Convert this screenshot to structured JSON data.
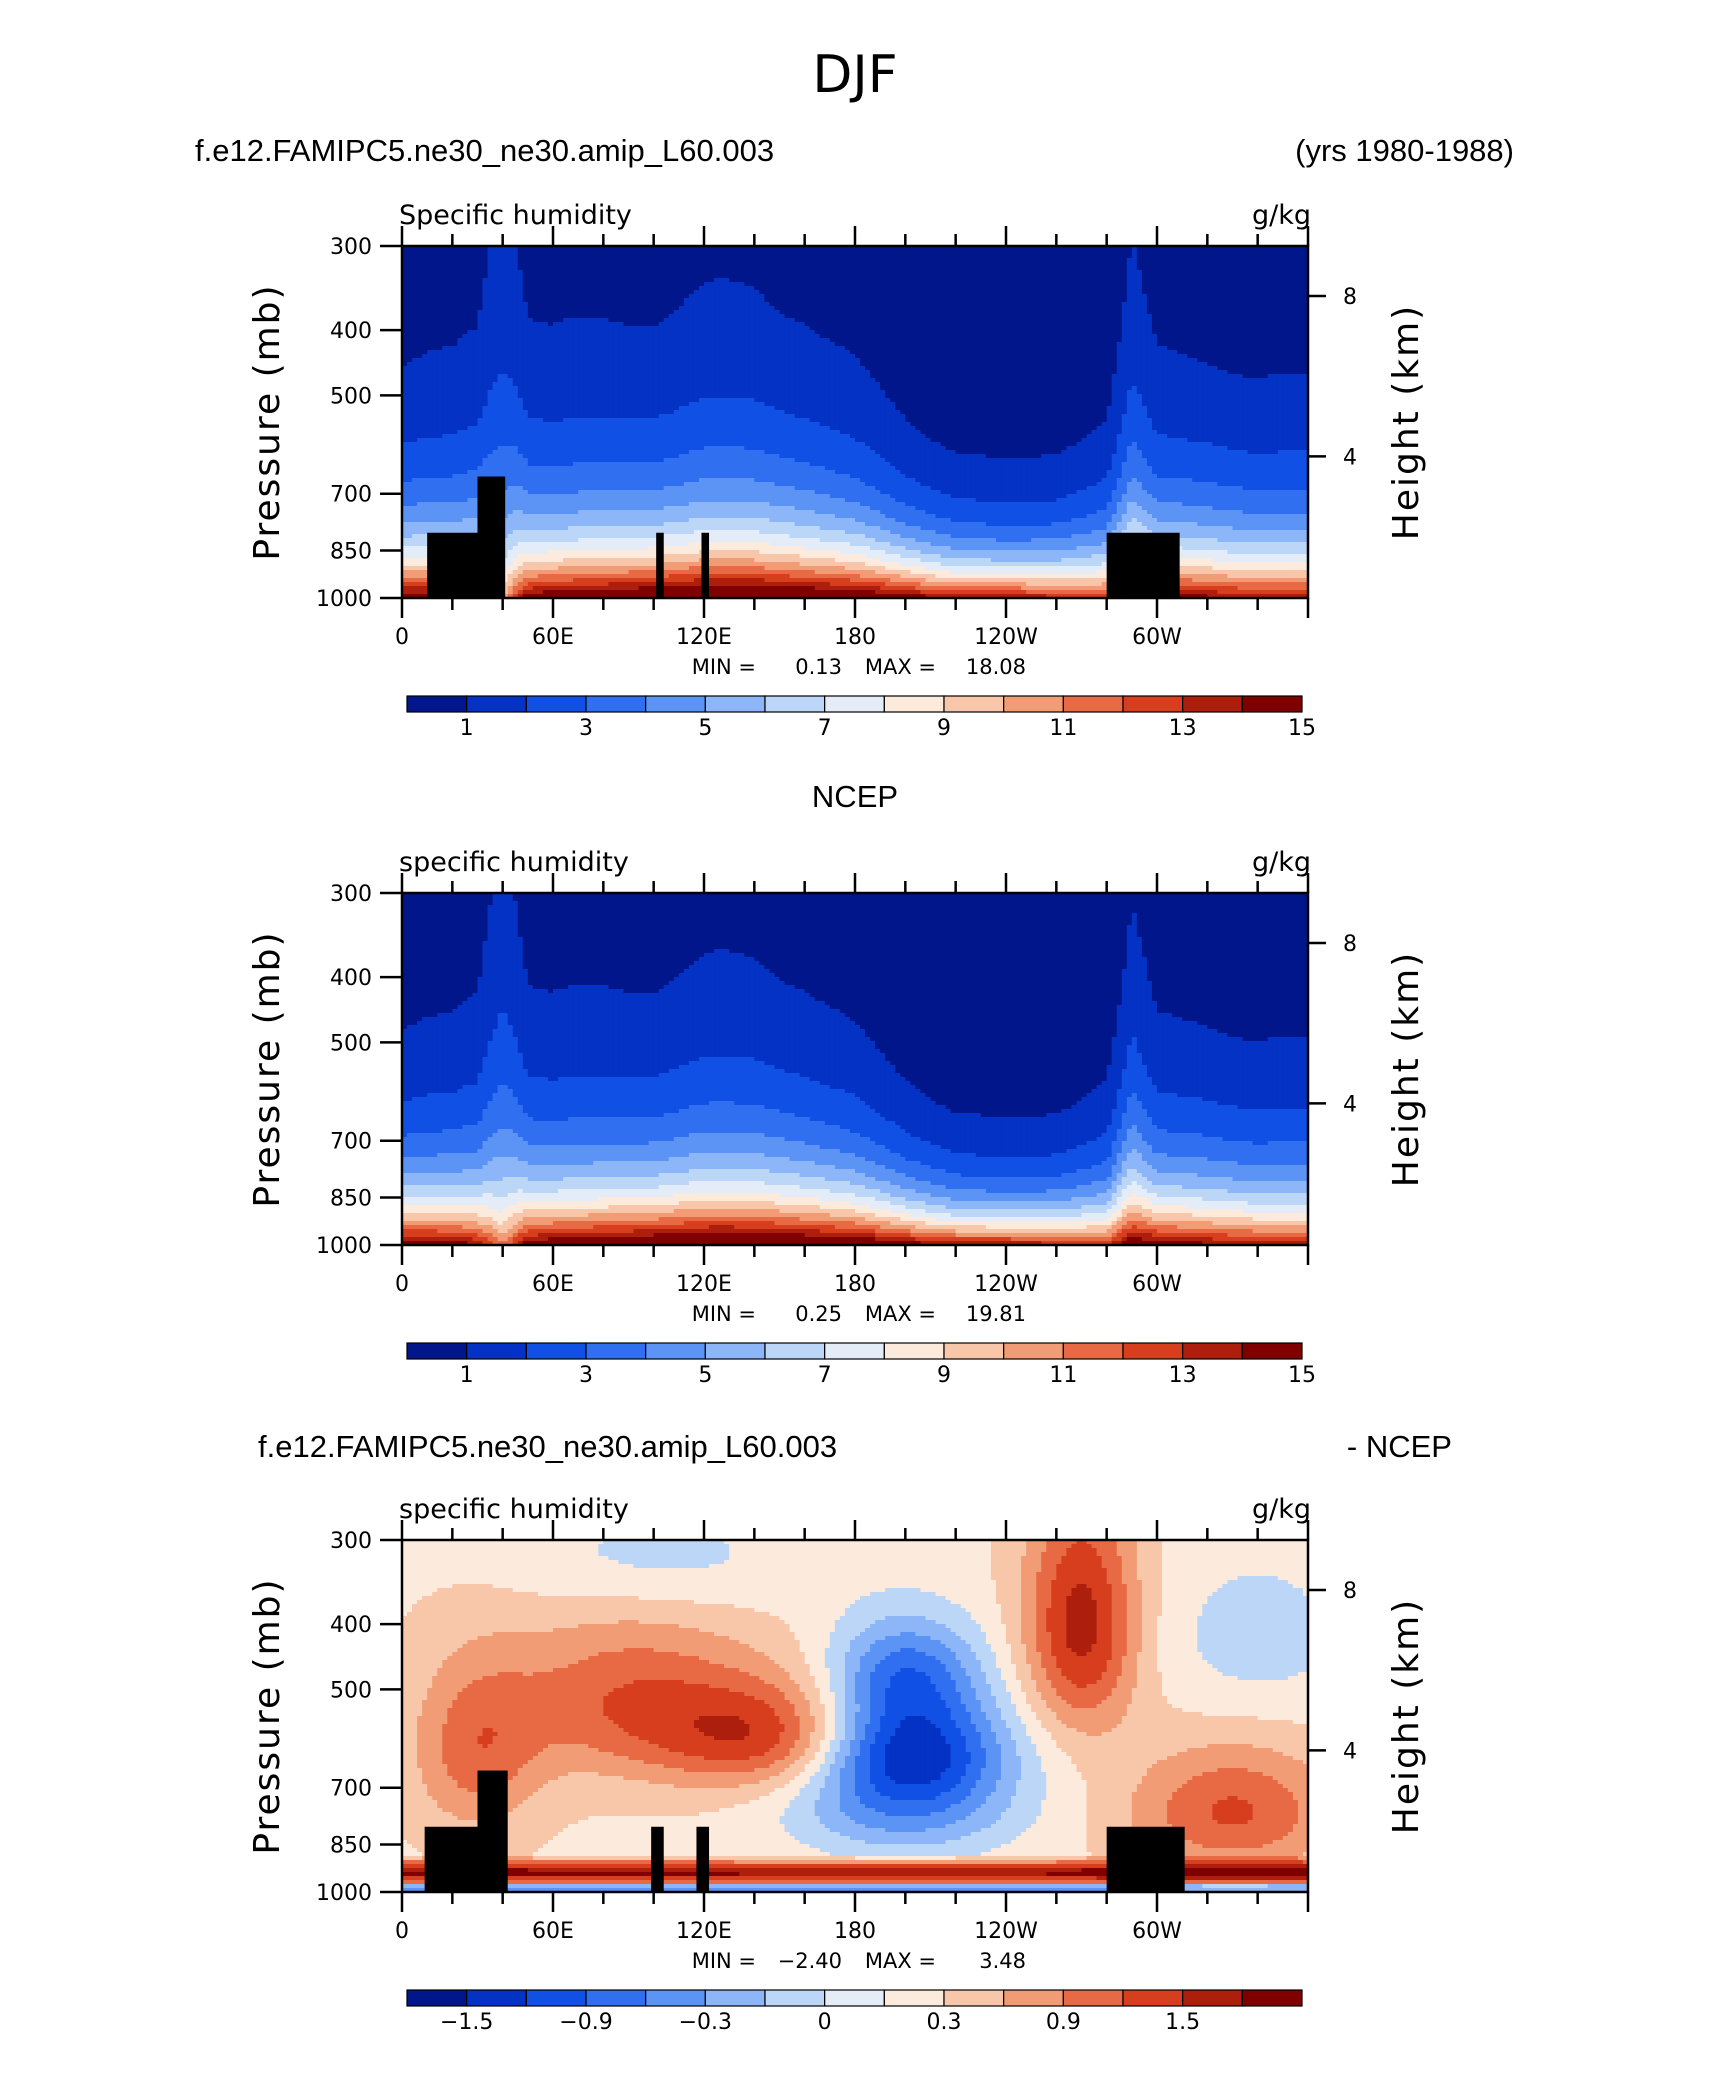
{
  "figure": {
    "title": "DJF",
    "run_name": "f.e12.FAMIPC5.ne30_ne30.amip_L60.003",
    "years": "(yrs 1980-1988)",
    "obs_title": "NCEP",
    "diff_left": "f.e12.FAMIPC5.ne30_ne30.amip_L60.003",
    "diff_right": "- NCEP"
  },
  "chart_data": [
    {
      "type": "heatmap",
      "subtitle": "Specific humidity",
      "units": "g/kg",
      "ylabel": "Pressure (mb)",
      "ylabel_right": "Height (km)",
      "x_ticks": [
        "0",
        "60E",
        "120E",
        "180",
        "120W",
        "60W"
      ],
      "y_ticks": [
        "300",
        "400",
        "500",
        "700",
        "850",
        "1000"
      ],
      "height_ticks": [
        "8",
        "4"
      ],
      "stats": {
        "min_label": "MIN =",
        "min": "0.13",
        "max_label": "MAX =",
        "max": "18.08"
      },
      "colorbar": {
        "colors": [
          "#00168a",
          "#0332c4",
          "#1050e4",
          "#3070f0",
          "#5c94f6",
          "#8cb6f8",
          "#bcd6f8",
          "#e4ecf8",
          "#fceadc",
          "#f8c6a8",
          "#f29c76",
          "#e86a44",
          "#d63e1e",
          "#ae1e0c",
          "#800000"
        ],
        "labels": [
          "1",
          "3",
          "5",
          "7",
          "9",
          "11",
          "13",
          "15"
        ]
      },
      "field_profile": {
        "longitudes": [
          0,
          20,
          30,
          40,
          50,
          60,
          80,
          100,
          120,
          140,
          160,
          180,
          200,
          220,
          240,
          260,
          280,
          290,
          300,
          320,
          340,
          360
        ],
        "surface_q": [
          15.5,
          15,
          14,
          10,
          15,
          15.5,
          16,
          16.5,
          17,
          17,
          16.5,
          16,
          15,
          14,
          14,
          13.5,
          13,
          15,
          15,
          14.5,
          14,
          14
        ],
        "scale_height": [
          0.2,
          0.21,
          0.23,
          0.34,
          0.23,
          0.22,
          0.22,
          0.22,
          0.23,
          0.23,
          0.22,
          0.2,
          0.17,
          0.15,
          0.14,
          0.15,
          0.18,
          0.26,
          0.21,
          0.21,
          0.2,
          0.2
        ]
      },
      "land_masks": [
        [
          10,
          38,
          800,
          1000
        ],
        [
          30,
          41,
          660,
          1000
        ],
        [
          101,
          104,
          800,
          1000
        ],
        [
          119,
          122,
          800,
          1000
        ],
        [
          280,
          309,
          800,
          1000
        ]
      ]
    },
    {
      "type": "heatmap",
      "subtitle": "specific humidity",
      "units": "g/kg",
      "ylabel": "Pressure (mb)",
      "ylabel_right": "Height (km)",
      "x_ticks": [
        "0",
        "60E",
        "120E",
        "180",
        "120W",
        "60W"
      ],
      "y_ticks": [
        "300",
        "400",
        "500",
        "700",
        "850",
        "1000"
      ],
      "height_ticks": [
        "8",
        "4"
      ],
      "stats": {
        "min_label": "MIN =",
        "min": "0.25",
        "max_label": "MAX =",
        "max": "19.81"
      },
      "colorbar": {
        "colors": [
          "#00168a",
          "#0332c4",
          "#1050e4",
          "#3070f0",
          "#5c94f6",
          "#8cb6f8",
          "#bcd6f8",
          "#e4ecf8",
          "#fceadc",
          "#f8c6a8",
          "#f29c76",
          "#e86a44",
          "#d63e1e",
          "#ae1e0c",
          "#800000"
        ],
        "labels": [
          "1",
          "3",
          "5",
          "7",
          "9",
          "11",
          "13",
          "15"
        ]
      },
      "field_profile": {
        "longitudes": [
          0,
          20,
          30,
          40,
          50,
          60,
          80,
          100,
          120,
          140,
          160,
          180,
          200,
          220,
          240,
          260,
          280,
          290,
          300,
          320,
          340,
          360
        ],
        "surface_q": [
          15.5,
          15,
          14,
          11,
          15,
          15.5,
          16,
          16.5,
          17,
          17,
          16.5,
          16,
          15,
          14,
          14,
          13.5,
          13,
          15.5,
          15,
          14.5,
          14,
          14
        ],
        "scale_height": [
          0.19,
          0.2,
          0.22,
          0.33,
          0.22,
          0.21,
          0.21,
          0.21,
          0.22,
          0.22,
          0.21,
          0.19,
          0.16,
          0.14,
          0.13,
          0.14,
          0.17,
          0.25,
          0.2,
          0.2,
          0.19,
          0.19
        ]
      },
      "land_masks": []
    },
    {
      "type": "heatmap",
      "subtitle": "specific humidity",
      "units": "g/kg",
      "ylabel": "Pressure (mb)",
      "ylabel_right": "Height (km)",
      "x_ticks": [
        "0",
        "60E",
        "120E",
        "180",
        "120W",
        "60W"
      ],
      "y_ticks": [
        "300",
        "400",
        "500",
        "700",
        "850",
        "1000"
      ],
      "height_ticks": [
        "8",
        "4"
      ],
      "stats": {
        "min_label": "MIN =",
        "min": "−2.40",
        "max_label": "MAX =",
        "max": "3.48"
      },
      "colorbar": {
        "colors": [
          "#00168a",
          "#0332c4",
          "#1050e4",
          "#3070f0",
          "#5c94f6",
          "#8cb6f8",
          "#bcd6f8",
          "#e4ecf8",
          "#fceadc",
          "#f8c6a8",
          "#f29c76",
          "#e86a44",
          "#d63e1e",
          "#ae1e0c",
          "#800000"
        ],
        "labels": [
          "−1.5",
          "−0.9",
          "−0.3",
          "0",
          "0.3",
          "0.9",
          "1.5"
        ]
      },
      "field_profile": {
        "blobs": [
          [
            200,
            610,
            -1.9,
            38,
            110
          ],
          [
            200,
            470,
            -1.2,
            30,
            90
          ],
          [
            200,
            750,
            -1.0,
            45,
            130
          ],
          [
            270,
            400,
            1.4,
            22,
            160
          ],
          [
            150,
            590,
            1.2,
            45,
            110
          ],
          [
            90,
            520,
            0.9,
            50,
            140
          ],
          [
            30,
            620,
            0.8,
            25,
            180
          ],
          [
            330,
            760,
            1.0,
            40,
            160
          ],
          [
            340,
            420,
            -0.4,
            40,
            120
          ],
          [
            100,
            320,
            -0.4,
            60,
            60
          ]
        ],
        "bottom_band": 1.6,
        "base": 0.25
      },
      "land_masks": [
        [
          9,
          41,
          800,
          1000
        ],
        [
          30,
          42,
          660,
          1000
        ],
        [
          99,
          104,
          800,
          1000
        ],
        [
          117,
          122,
          800,
          1000
        ],
        [
          280,
          311,
          800,
          1000
        ]
      ]
    }
  ]
}
